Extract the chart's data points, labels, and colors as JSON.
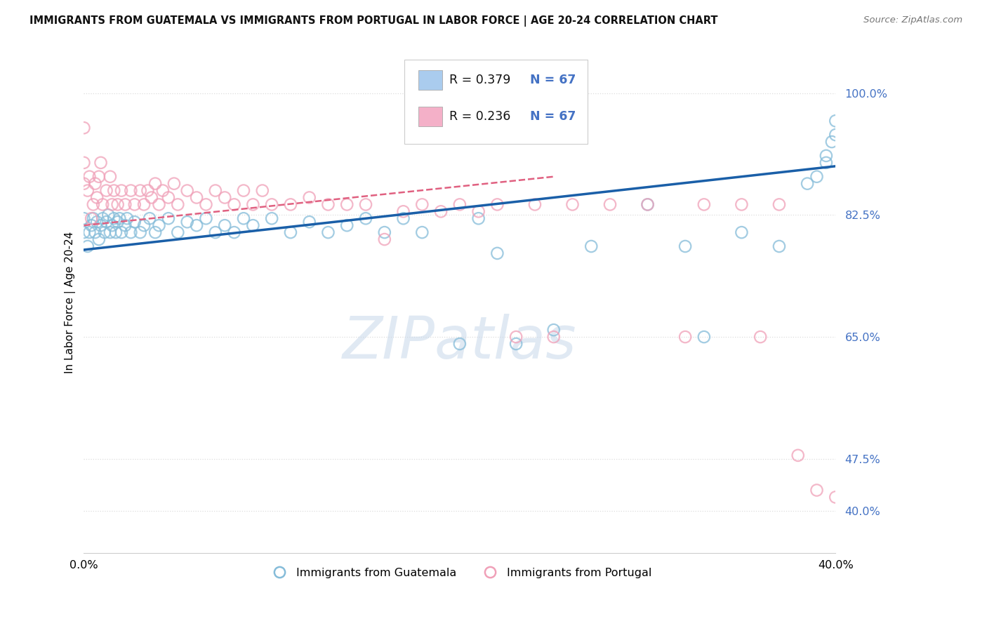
{
  "title": "IMMIGRANTS FROM GUATEMALA VS IMMIGRANTS FROM PORTUGAL IN LABOR FORCE | AGE 20-24 CORRELATION CHART",
  "source": "Source: ZipAtlas.com",
  "ylabel": "In Labor Force | Age 20-24",
  "legend_R_blue": "R = 0.379",
  "legend_N_blue": "N = 67",
  "legend_R_pink": "R = 0.236",
  "legend_N_pink": "N = 67",
  "blue_scatter": "#85bcd9",
  "pink_scatter": "#f0a0b8",
  "trend_blue_color": "#1a5fa8",
  "trend_pink_color": "#e06080",
  "legend_blue_fill": "#aaccee",
  "legend_pink_fill": "#f4b0c8",
  "watermark_color": "#c8d8ea",
  "label_blue": "Immigrants from Guatemala",
  "label_pink": "Immigrants from Portugal",
  "background_color": "#ffffff",
  "grid_color": "#dddddd",
  "right_tick_color": "#4472c4",
  "xlim_min": 0.0,
  "xlim_max": 0.4,
  "ylim_min": 0.34,
  "ylim_max": 1.06,
  "ytick_vals": [
    0.4,
    0.475,
    0.65,
    0.825,
    1.0
  ],
  "ytick_labels": [
    "40.0%",
    "47.5%",
    "65.0%",
    "82.5%",
    "100.0%"
  ],
  "xtick_vals": [
    0.0,
    0.05,
    0.1,
    0.15,
    0.2,
    0.25,
    0.3,
    0.35,
    0.4
  ],
  "xtick_labels": [
    "0.0%",
    "",
    "",
    "",
    "",
    "",
    "",
    "",
    "40.0%"
  ],
  "guatemala_x": [
    0.0,
    0.0,
    0.002,
    0.003,
    0.004,
    0.005,
    0.006,
    0.007,
    0.008,
    0.009,
    0.01,
    0.011,
    0.012,
    0.013,
    0.014,
    0.015,
    0.016,
    0.017,
    0.018,
    0.019,
    0.02,
    0.022,
    0.023,
    0.025,
    0.027,
    0.03,
    0.032,
    0.035,
    0.038,
    0.04,
    0.045,
    0.05,
    0.055,
    0.06,
    0.065,
    0.07,
    0.075,
    0.08,
    0.085,
    0.09,
    0.1,
    0.11,
    0.12,
    0.13,
    0.14,
    0.15,
    0.16,
    0.17,
    0.18,
    0.2,
    0.21,
    0.22,
    0.23,
    0.25,
    0.27,
    0.3,
    0.32,
    0.33,
    0.35,
    0.37,
    0.385,
    0.39,
    0.395,
    0.395,
    0.398,
    0.4,
    0.4
  ],
  "guatemala_y": [
    0.8,
    0.82,
    0.78,
    0.8,
    0.81,
    0.82,
    0.8,
    0.815,
    0.79,
    0.81,
    0.82,
    0.8,
    0.815,
    0.825,
    0.8,
    0.81,
    0.82,
    0.8,
    0.815,
    0.82,
    0.8,
    0.81,
    0.82,
    0.8,
    0.815,
    0.8,
    0.81,
    0.82,
    0.8,
    0.81,
    0.82,
    0.8,
    0.815,
    0.81,
    0.82,
    0.8,
    0.81,
    0.8,
    0.82,
    0.81,
    0.82,
    0.8,
    0.815,
    0.8,
    0.81,
    0.82,
    0.8,
    0.82,
    0.8,
    0.64,
    0.82,
    0.77,
    0.64,
    0.66,
    0.78,
    0.84,
    0.78,
    0.65,
    0.8,
    0.78,
    0.87,
    0.88,
    0.9,
    0.91,
    0.93,
    0.94,
    0.96
  ],
  "portugal_x": [
    0.0,
    0.0,
    0.0,
    0.002,
    0.003,
    0.004,
    0.005,
    0.006,
    0.007,
    0.008,
    0.009,
    0.01,
    0.012,
    0.014,
    0.015,
    0.016,
    0.018,
    0.02,
    0.022,
    0.025,
    0.027,
    0.03,
    0.032,
    0.034,
    0.036,
    0.038,
    0.04,
    0.042,
    0.045,
    0.048,
    0.05,
    0.055,
    0.06,
    0.065,
    0.07,
    0.075,
    0.08,
    0.085,
    0.09,
    0.095,
    0.1,
    0.11,
    0.12,
    0.13,
    0.14,
    0.15,
    0.16,
    0.17,
    0.18,
    0.19,
    0.2,
    0.21,
    0.22,
    0.23,
    0.24,
    0.25,
    0.26,
    0.28,
    0.3,
    0.32,
    0.33,
    0.35,
    0.36,
    0.37,
    0.38,
    0.39,
    0.4
  ],
  "portugal_y": [
    0.87,
    0.9,
    0.95,
    0.86,
    0.88,
    0.82,
    0.84,
    0.87,
    0.85,
    0.88,
    0.9,
    0.84,
    0.86,
    0.88,
    0.84,
    0.86,
    0.84,
    0.86,
    0.84,
    0.86,
    0.84,
    0.86,
    0.84,
    0.86,
    0.85,
    0.87,
    0.84,
    0.86,
    0.85,
    0.87,
    0.84,
    0.86,
    0.85,
    0.84,
    0.86,
    0.85,
    0.84,
    0.86,
    0.84,
    0.86,
    0.84,
    0.84,
    0.85,
    0.84,
    0.84,
    0.84,
    0.79,
    0.83,
    0.84,
    0.83,
    0.84,
    0.83,
    0.84,
    0.65,
    0.84,
    0.65,
    0.84,
    0.84,
    0.84,
    0.65,
    0.84,
    0.84,
    0.65,
    0.84,
    0.48,
    0.43,
    0.42
  ],
  "trend_blue_x0": 0.0,
  "trend_blue_x1": 0.4,
  "trend_blue_y0": 0.775,
  "trend_blue_y1": 0.895,
  "trend_pink_x0": 0.0,
  "trend_pink_x1": 0.25,
  "trend_pink_y0": 0.81,
  "trend_pink_y1": 0.88
}
